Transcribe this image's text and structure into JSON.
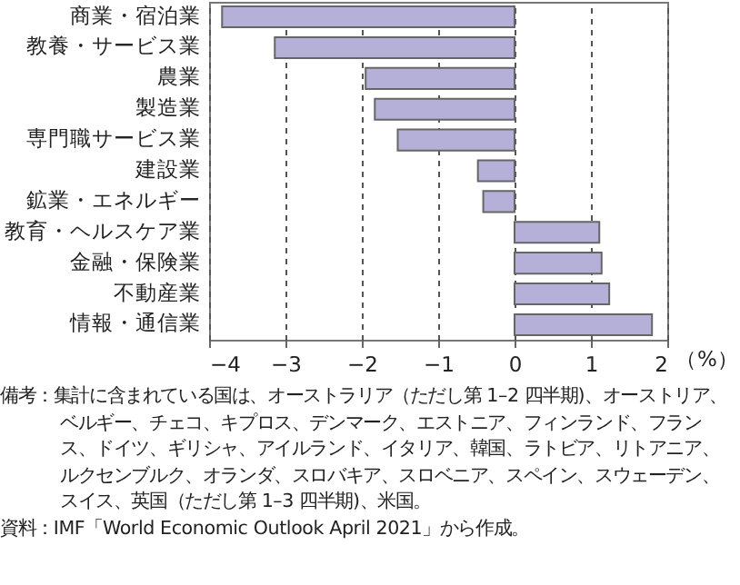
{
  "chart_data": {
    "type": "bar",
    "orientation": "horizontal",
    "categories": [
      "商業・宿泊業",
      "教養・サービス業",
      "農業",
      "製造業",
      "専門職サービス業",
      "建設業",
      "鉱業・エネルギー",
      "教育・ヘルスケア業",
      "金融・保険業",
      "不動産業",
      "情報・通信業"
    ],
    "values": [
      -3.83,
      -3.14,
      -1.95,
      -1.83,
      -1.53,
      -0.48,
      -0.41,
      1.11,
      1.14,
      1.24,
      1.8
    ],
    "color": "#b4b0d8",
    "xlim": [
      -4,
      2
    ],
    "xticks": [
      -4,
      -3,
      -2,
      -1,
      0,
      1,
      2
    ],
    "xlabel": "（%）",
    "grid": "x",
    "annotations": [
      "備考：集計に含まれている国は、オーストラリア（ただし第 1–2 四半期)、オーストリア、ベルギー、チェコ、キプロス、デンマーク、エストニア、フィンランド、フランス、ドイツ、ギリシャ、アイルランド、イタリア、韓国、ラトビア、リトアニア、ルクセンブルク、オランダ、スロバキア、スロベニア、スペイン、スウェーデン、スイス、英国（ただし第 1–3 四半期)、米国。",
      "資料：IMF「World Economic Outlook April 2021」から作成。"
    ]
  }
}
